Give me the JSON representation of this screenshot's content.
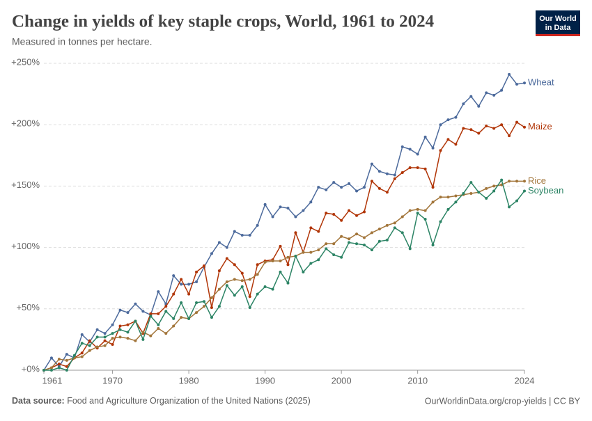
{
  "chart_data": {
    "type": "line",
    "title": "Change in yields of key staple crops, World, 1961 to 2024",
    "subtitle": "Measured in tonnes per hectare.",
    "x": [
      1961,
      1962,
      1963,
      1964,
      1965,
      1966,
      1967,
      1968,
      1969,
      1970,
      1971,
      1972,
      1973,
      1974,
      1975,
      1976,
      1977,
      1978,
      1979,
      1980,
      1981,
      1982,
      1983,
      1984,
      1985,
      1986,
      1987,
      1988,
      1989,
      1990,
      1991,
      1992,
      1993,
      1994,
      1995,
      1996,
      1997,
      1998,
      1999,
      2000,
      2001,
      2002,
      2003,
      2004,
      2005,
      2006,
      2007,
      2008,
      2009,
      2010,
      2011,
      2012,
      2013,
      2014,
      2015,
      2016,
      2017,
      2018,
      2019,
      2020,
      2021,
      2022,
      2023,
      2024
    ],
    "xlim": [
      1961,
      2024
    ],
    "xticks": [
      1961,
      1970,
      1980,
      1990,
      2000,
      2010,
      2024
    ],
    "ylim": [
      0,
      250
    ],
    "yticks": [
      {
        "value": 0,
        "label": "+0%"
      },
      {
        "value": 50,
        "label": "+50%"
      },
      {
        "value": 100,
        "label": "+100%"
      },
      {
        "value": 150,
        "label": "+150%"
      },
      {
        "value": 200,
        "label": "+200%"
      },
      {
        "value": 250,
        "label": "+250%"
      }
    ],
    "grid": true,
    "series": [
      {
        "name": "Wheat",
        "color": "#4c6a9c",
        "values": [
          0,
          10,
          3,
          13,
          10,
          29,
          23,
          33,
          30,
          37,
          49,
          47,
          54,
          48,
          45,
          64,
          54,
          77,
          70,
          70,
          72,
          84,
          95,
          104,
          100,
          113,
          110,
          110,
          118,
          135,
          125,
          133,
          132,
          125,
          130,
          137,
          149,
          147,
          153,
          149,
          152,
          146,
          149,
          168,
          162,
          160,
          159,
          182,
          180,
          176,
          190,
          181,
          200,
          204,
          206,
          217,
          223,
          215,
          226,
          224,
          228,
          241,
          233,
          234
        ]
      },
      {
        "name": "Maize",
        "color": "#b13507",
        "values": [
          0,
          2,
          5,
          3,
          10,
          14,
          24,
          18,
          24,
          21,
          36,
          37,
          40,
          30,
          46,
          46,
          52,
          62,
          74,
          62,
          80,
          85,
          51,
          81,
          91,
          86,
          79,
          60,
          86,
          89,
          90,
          101,
          86,
          112,
          96,
          116,
          113,
          128,
          127,
          122,
          130,
          126,
          129,
          154,
          148,
          145,
          156,
          161,
          165,
          165,
          164,
          149,
          179,
          188,
          184,
          197,
          196,
          193,
          199,
          197,
          200,
          191,
          202,
          198
        ]
      },
      {
        "name": "Rice",
        "color": "#a2753a",
        "values": [
          0,
          2,
          9,
          8,
          10,
          11,
          16,
          19,
          20,
          26,
          27,
          26,
          24,
          31,
          28,
          34,
          30,
          36,
          43,
          42,
          47,
          52,
          59,
          66,
          72,
          74,
          73,
          74,
          78,
          88,
          89,
          89,
          92,
          93,
          96,
          96,
          98,
          103,
          103,
          109,
          107,
          111,
          108,
          112,
          115,
          118,
          120,
          125,
          130,
          131,
          130,
          137,
          141,
          141,
          142,
          143,
          144,
          145,
          148,
          150,
          151,
          154,
          154,
          154
        ]
      },
      {
        "name": "Soybean",
        "color": "#2c8465",
        "values": [
          0,
          0,
          2,
          0,
          12,
          22,
          20,
          27,
          27,
          30,
          33,
          31,
          40,
          25,
          44,
          37,
          48,
          42,
          55,
          42,
          55,
          56,
          43,
          52,
          69,
          61,
          68,
          51,
          62,
          68,
          66,
          80,
          71,
          93,
          80,
          87,
          90,
          99,
          94,
          92,
          104,
          103,
          102,
          98,
          105,
          106,
          116,
          112,
          99,
          128,
          123,
          102,
          121,
          131,
          137,
          144,
          153,
          145,
          140,
          146,
          155,
          133,
          138,
          146
        ]
      }
    ]
  },
  "logo": {
    "line1": "Our World",
    "line2": "in Data"
  },
  "footer": {
    "source_label": "Data source:",
    "source": "Food and Agriculture Organization of the United Nations (2025)",
    "url": "OurWorldinData.org/crop-yields | CC BY"
  }
}
